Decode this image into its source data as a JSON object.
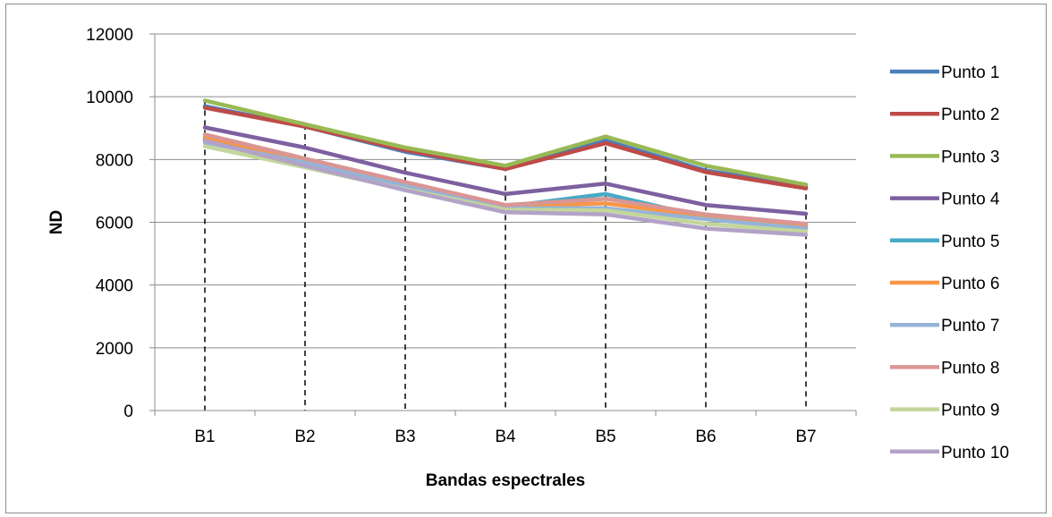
{
  "chart_data": {
    "type": "line",
    "title": "",
    "xlabel": "Bandas espectrales",
    "ylabel": "ND",
    "ylim": [
      0,
      12000
    ],
    "yticks": [
      0,
      2000,
      4000,
      6000,
      8000,
      10000,
      12000
    ],
    "grid": "horizontal",
    "legend_position": "right",
    "categories": [
      "B1",
      "B2",
      "B3",
      "B4",
      "B5",
      "B6",
      "B7"
    ],
    "series": [
      {
        "name": "Punto 1",
        "color": "#4a7ebb",
        "values": [
          9700,
          9050,
          8250,
          7700,
          8600,
          7650,
          7150
        ]
      },
      {
        "name": "Punto 2",
        "color": "#be4b48",
        "values": [
          9650,
          9050,
          8300,
          7700,
          8520,
          7600,
          7080
        ]
      },
      {
        "name": "Punto 3",
        "color": "#98b954",
        "values": [
          9880,
          9120,
          8380,
          7800,
          8730,
          7800,
          7200
        ]
      },
      {
        "name": "Punto 4",
        "color": "#7d60a0",
        "values": [
          9020,
          8380,
          7580,
          6900,
          7230,
          6550,
          6270
        ]
      },
      {
        "name": "Punto 5",
        "color": "#46aac5",
        "values": [
          8650,
          7950,
          7200,
          6500,
          6900,
          6150,
          5850
        ]
      },
      {
        "name": "Punto 6",
        "color": "#f79646",
        "values": [
          8720,
          7980,
          7230,
          6520,
          6600,
          6200,
          5900
        ]
      },
      {
        "name": "Punto 7",
        "color": "#95b3d7",
        "values": [
          8550,
          7900,
          7150,
          6450,
          6450,
          6100,
          5800
        ]
      },
      {
        "name": "Punto 8",
        "color": "#d99694",
        "values": [
          8800,
          8030,
          7280,
          6550,
          6750,
          6250,
          5950
        ]
      },
      {
        "name": "Punto 9",
        "color": "#c3d69b",
        "values": [
          8420,
          7750,
          7050,
          6400,
          6380,
          5950,
          5700
        ]
      },
      {
        "name": "Punto 10",
        "color": "#b3a2c7",
        "values": [
          8600,
          7800,
          7020,
          6320,
          6250,
          5800,
          5600
        ]
      }
    ]
  }
}
